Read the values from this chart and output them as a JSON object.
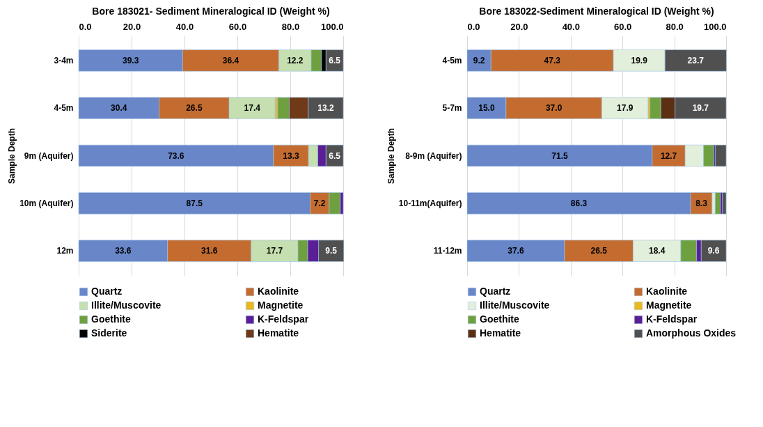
{
  "chart_data": [
    {
      "type": "bar",
      "orientation": "horizontal",
      "stacked": true,
      "title": "Bore 183021- Sediment Mineralogical ID (Weight %)",
      "ylabel": "Sample Depth",
      "categories": [
        "3-4m",
        "4-5m",
        "9m (Aquifer)",
        "10m (Aquifer)",
        "12m"
      ],
      "xlim": [
        0,
        100
      ],
      "xticks": [
        {
          "value": 0,
          "label": "0.0"
        },
        {
          "value": 20,
          "label": "20.0"
        },
        {
          "value": 40,
          "label": "40.0"
        },
        {
          "value": 60,
          "label": "60.0"
        },
        {
          "value": 80,
          "label": "80.0"
        },
        {
          "value": 100,
          "label": "100.0"
        }
      ],
      "grid": "x",
      "legend": "bottom",
      "series": [
        {
          "name": "Quartz",
          "color": "#6886c8",
          "values": [
            39.3,
            30.4,
            73.6,
            87.5,
            33.6
          ],
          "value_labels": [
            "39.3",
            "30.4",
            "73.6",
            "87.5",
            "33.6"
          ]
        },
        {
          "name": "Kaolinite",
          "color": "#c46c30",
          "values": [
            36.4,
            26.5,
            13.3,
            7.2,
            31.6
          ],
          "value_labels": [
            "36.4",
            "26.5",
            "13.3",
            "7.2",
            "31.6"
          ]
        },
        {
          "name": "Illite/Muscovite",
          "color": "#c5dfb0",
          "values": [
            12.2,
            17.4,
            3.5,
            null,
            17.7
          ],
          "value_labels": [
            "12.2",
            "17.4",
            null,
            null,
            "17.7"
          ]
        },
        {
          "name": "Magnetite",
          "color": "#e8b820",
          "values": [
            null,
            0.9,
            null,
            null,
            null
          ]
        },
        {
          "name": "Goethite",
          "color": "#6fa040",
          "values": [
            3.9,
            4.4,
            null,
            4.2,
            3.7
          ]
        },
        {
          "name": "K-Feldspar",
          "color": "#5a1f96",
          "values": [
            null,
            null,
            3.1,
            1.1,
            4.1
          ]
        },
        {
          "name": "Siderite",
          "color": "#000000",
          "values": [
            1.7,
            null,
            null,
            null,
            null
          ]
        },
        {
          "name": "Hematite",
          "color": "#6e3a18",
          "values": [
            null,
            7.2,
            null,
            null,
            null
          ]
        },
        {
          "color": "#505050",
          "values": [
            6.5,
            13.2,
            6.5,
            null,
            9.5
          ],
          "value_labels": [
            "6.5",
            "13.2",
            "6.5",
            null,
            "9.5"
          ]
        }
      ]
    },
    {
      "type": "bar",
      "orientation": "horizontal",
      "stacked": true,
      "title": "Bore 183022-Sediment Mineralogical ID (Weight %)",
      "ylabel": "Sample Depth",
      "categories": [
        "4-5m",
        "5-7m",
        "8-9m (Aquifer)",
        "10-11m(Aquifer)",
        "11-12m"
      ],
      "xlim": [
        0,
        100
      ],
      "xticks": [
        {
          "value": 0,
          "label": "0.0"
        },
        {
          "value": 20,
          "label": "20.0"
        },
        {
          "value": 40,
          "label": "40.0"
        },
        {
          "value": 60,
          "label": "60.0"
        },
        {
          "value": 80,
          "label": "80.0"
        },
        {
          "value": 100,
          "label": "100.0"
        }
      ],
      "grid": "x",
      "legend": "bottom",
      "series": [
        {
          "name": "Quartz",
          "color": "#6886c8",
          "values": [
            9.2,
            15.0,
            71.5,
            86.3,
            37.6
          ],
          "value_labels": [
            "9.2",
            "15.0",
            "71.5",
            "86.3",
            "37.6"
          ]
        },
        {
          "name": "Kaolinite",
          "color": "#c46c30",
          "values": [
            47.3,
            37.0,
            12.7,
            8.3,
            26.5
          ],
          "value_labels": [
            "47.3",
            "37.0",
            "12.7",
            "8.3",
            "26.5"
          ]
        },
        {
          "name": "Illite/Muscovite",
          "color": "#e2efda",
          "values": [
            19.9,
            17.9,
            7.1,
            1.2,
            18.4
          ],
          "value_labels": [
            "19.9",
            "17.9",
            null,
            null,
            "18.4"
          ]
        },
        {
          "name": "Magnetite",
          "color": "#e8b820",
          "values": [
            null,
            0.7,
            null,
            null,
            null
          ]
        },
        {
          "name": "Goethite",
          "color": "#6fa040",
          "values": [
            null,
            4.2,
            3.9,
            2.0,
            6.1
          ]
        },
        {
          "name": "K-Feldspar",
          "color": "#5a1f96",
          "values": [
            null,
            null,
            0.6,
            0.8,
            1.8
          ]
        },
        {
          "name": "Hematite",
          "color": "#5c2e12",
          "values": [
            null,
            5.5,
            null,
            null,
            null
          ]
        },
        {
          "name": "Amorphous Oxides",
          "color": "#505050",
          "values": [
            23.7,
            19.7,
            4.2,
            1.4,
            9.6
          ],
          "value_labels": [
            "23.7",
            "19.7",
            null,
            null,
            "9.6"
          ]
        }
      ]
    }
  ]
}
